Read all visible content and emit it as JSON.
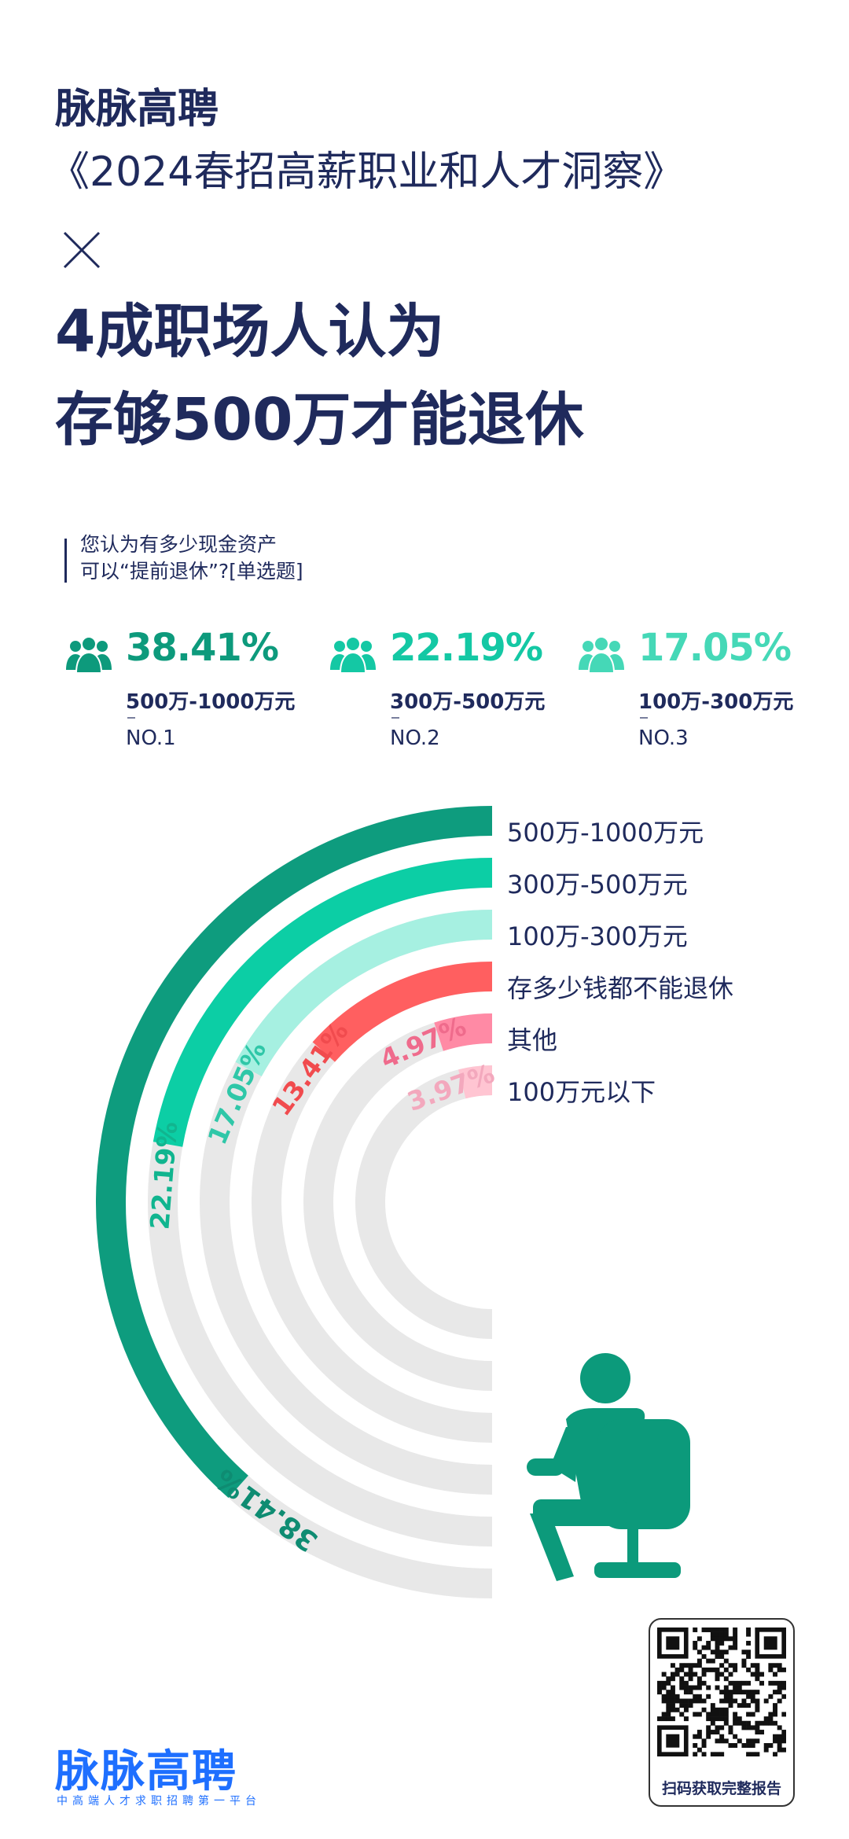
{
  "header": {
    "brand": "脉脉高聘",
    "report_title": "《2024春招高薪职业和人才洞察》",
    "headline_line1": "4成职场人认为",
    "headline_line2": "存够500万才能退休"
  },
  "question": {
    "line1": "您认为有多少现金资产",
    "line2": "可以“提前退休”?[单选题]"
  },
  "top3": [
    {
      "pct": "38.41%",
      "range": "500万-1000万元",
      "rank": "NO.1",
      "color": "#0d9a7c"
    },
    {
      "pct": "22.19%",
      "range": "300万-500万元",
      "rank": "NO.2",
      "color": "#14c8a4"
    },
    {
      "pct": "17.05%",
      "range": "100万-300万元",
      "rank": "NO.3",
      "color": "#45d8b7"
    }
  ],
  "chart_data": {
    "type": "radial-bar",
    "categories": [
      "500万-1000万元",
      "300万-500万元",
      "100万-300万元",
      "存多少钱都不能退休",
      "其他",
      "100万元以下"
    ],
    "values": [
      38.41,
      22.19,
      17.05,
      13.41,
      4.97,
      3.97
    ],
    "labels": [
      "38.41%",
      "22.19%",
      "17.05%",
      "13.41%",
      "4.97%",
      "3.97%"
    ],
    "unit": "%",
    "colors": [
      "#0e9c7e",
      "#0ccea5",
      "#a6f0e1",
      "#ff5f60",
      "#ff8aa5",
      "#ffc5d2"
    ],
    "label_colors": [
      "#0e8c72",
      "#11b58f",
      "#2fc7a8",
      "#f14b4e",
      "#ef6b8c",
      "#f3a8bd"
    ],
    "track_color": "#e8e8e8"
  },
  "qr": {
    "caption": "扫码获取完整报告"
  },
  "footer": {
    "logo": "脉脉高聘",
    "tagline": "中高端人才求职招聘第一平台"
  }
}
